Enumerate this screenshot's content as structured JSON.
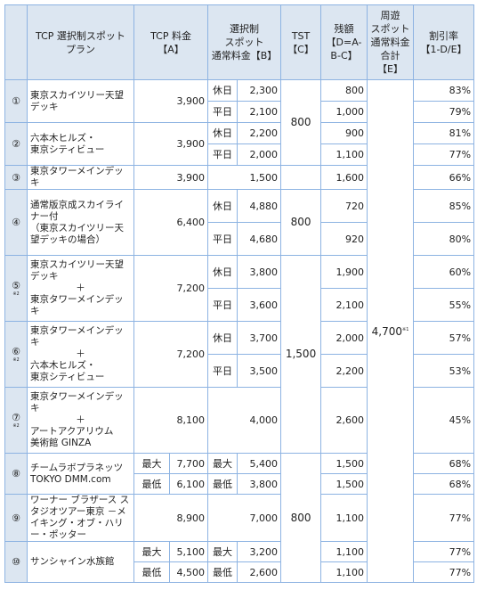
{
  "headers": {
    "plan": [
      "TCP 選択制スポット",
      "プラン"
    ],
    "tcp": [
      "TCP 料金",
      "【A】"
    ],
    "select": [
      "選択制",
      "スポット",
      "通常料金【B】"
    ],
    "tst": [
      "TST",
      "【C】"
    ],
    "rem": [
      "残額",
      "【D=A-",
      "B-C】"
    ],
    "tour": [
      "周遊",
      "スポット",
      "通常料金",
      "合計【E】"
    ],
    "rate": [
      "割引率",
      "【1-D/E】"
    ]
  },
  "labels": {
    "holiday": "休日",
    "weekday": "平日",
    "max": "最大",
    "min": "最低",
    "plus": "＋",
    "note2": "※2",
    "note1": "※1"
  },
  "merged": {
    "tst_800_a": "800",
    "tst_800_b": "800",
    "tst_1500": "1,500",
    "tst_800_c": "800",
    "tour_total": "4,700"
  },
  "rows": {
    "r1": {
      "num": "①",
      "plan": "東京スカイツリー天望デッキ",
      "tcp": "3,900",
      "b": [
        "2,300",
        "2,100"
      ],
      "d": [
        "800",
        "1,000"
      ],
      "rate": [
        "83%",
        "79%"
      ]
    },
    "r2": {
      "num": "②",
      "plan": [
        "六本木ヒルズ・",
        "東京シティビュー"
      ],
      "tcp": "3,900",
      "b": [
        "2,200",
        "2,000"
      ],
      "d": [
        "900",
        "1,100"
      ],
      "rate": [
        "81%",
        "77%"
      ]
    },
    "r3": {
      "num": "③",
      "plan": "東京タワーメインデッキ",
      "tcp": "3,900",
      "b": "1,500",
      "d": "1,600",
      "rate": "66%"
    },
    "r4": {
      "num": "④",
      "plan": [
        "通常版京成スカイライナー付",
        "（東京スカイツリー天望デッキの場合）"
      ],
      "tcp": "6,400",
      "b": [
        "4,880",
        "4,680"
      ],
      "d": [
        "720",
        "920"
      ],
      "rate": [
        "85%",
        "80%"
      ]
    },
    "r5": {
      "num": "⑤",
      "plan": [
        "東京スカイツリー天望デッキ",
        "東京タワーメインデッキ"
      ],
      "tcp": "7,200",
      "b": [
        "3,800",
        "3,600"
      ],
      "d": [
        "1,900",
        "2,100"
      ],
      "rate": [
        "60%",
        "55%"
      ]
    },
    "r6": {
      "num": "⑥",
      "plan": [
        "東京タワーメインデッキ",
        "六本木ヒルズ・",
        "東京シティビュー"
      ],
      "tcp": "7,200",
      "b": [
        "3,700",
        "3,500"
      ],
      "d": [
        "2,000",
        "2,200"
      ],
      "rate": [
        "57%",
        "53%"
      ]
    },
    "r7": {
      "num": "⑦",
      "plan": [
        "東京タワーメインデッキ",
        "アートアクアリウム",
        "美術館 GINZA"
      ],
      "tcp": "8,100",
      "b": "4,000",
      "d": "2,600",
      "rate": "45%"
    },
    "r8": {
      "num": "⑧",
      "plan": [
        "チームラボプラネッツ",
        "TOKYO DMM.com"
      ],
      "tcp": [
        "7,700",
        "6,100"
      ],
      "b": [
        "5,400",
        "3,800"
      ],
      "d": [
        "1,500",
        "1,500"
      ],
      "rate": [
        "68%",
        "68%"
      ]
    },
    "r9": {
      "num": "⑨",
      "plan": "ワーナー ブラザース スタジオツアー東京 －メイキング・オブ・ハリー・ポッター",
      "tcp": "8,900",
      "b": "7,000",
      "tst": "800",
      "d": "1,100",
      "rate": "77%"
    },
    "r10": {
      "num": "⑩",
      "plan": "サンシャイン水族館",
      "tcp": [
        "5,100",
        "4,500"
      ],
      "b": [
        "3,200",
        "2,600"
      ],
      "d": [
        "1,100",
        "1,100"
      ],
      "rate": [
        "77%",
        "77%"
      ]
    }
  }
}
